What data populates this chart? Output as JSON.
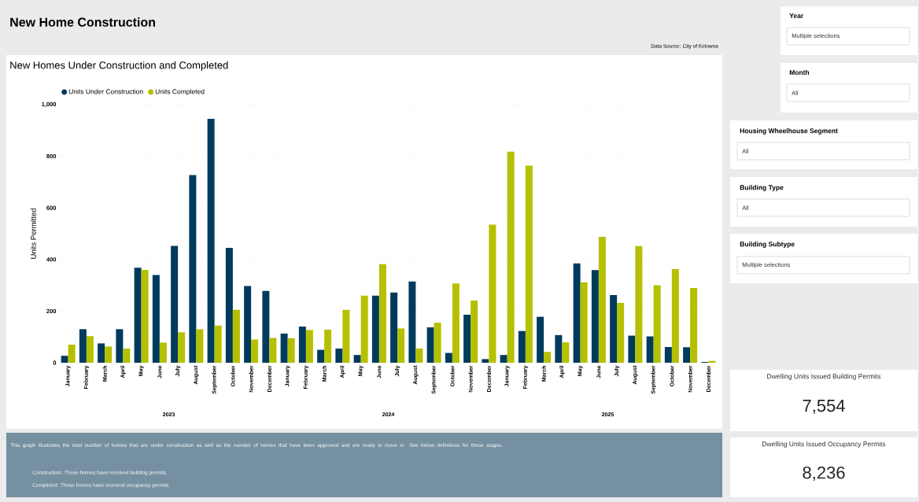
{
  "chart_data": [
    {
      "type": "other",
      "title": "New Home Construction",
      "annotations": [
        "Data Source: City of Kelowna"
      ]
    },
    {
      "type": "bar",
      "title": "New Homes Under Construction and Completed",
      "ylabel": "Units Permitted",
      "categories": [
        "January",
        "February",
        "March",
        "April",
        "May",
        "June",
        "July",
        "August",
        "September",
        "October",
        "November",
        "December",
        "January",
        "February",
        "March",
        "April",
        "May",
        "June",
        "July",
        "August",
        "September",
        "October",
        "November",
        "December",
        "January",
        "February",
        "March",
        "April",
        "May",
        "June",
        "July",
        "August",
        "September",
        "October",
        "November",
        "December"
      ],
      "series": [
        {
          "name": "Units Under Construction",
          "color": "#003a5c",
          "values": [
            27,
            130,
            75,
            130,
            368,
            340,
            453,
            727,
            945,
            445,
            297,
            278,
            113,
            140,
            50,
            55,
            30,
            260,
            272,
            315,
            137,
            38,
            186,
            14,
            30,
            123,
            178,
            107,
            385,
            359,
            262,
            105,
            102,
            61,
            60,
            3
          ]
        },
        {
          "name": "Units Completed",
          "color": "#b5c000",
          "values": [
            70,
            103,
            63,
            55,
            360,
            78,
            118,
            130,
            144,
            205,
            90,
            96,
            95,
            127,
            128,
            205,
            260,
            382,
            133,
            55,
            155,
            307,
            241,
            535,
            818,
            764,
            42,
            79,
            312,
            488,
            232,
            452,
            300,
            363,
            290,
            7
          ]
        }
      ],
      "ylim": [
        0,
        1000
      ],
      "yticks": [
        0,
        200,
        400,
        600,
        800,
        {
          "value": 1000,
          "label": "1,000"
        }
      ],
      "grid": "y",
      "legend": "top left",
      "annotations": [
        "2023",
        "2024",
        "2025"
      ]
    },
    {
      "type": "other",
      "annotations": [
        "Year",
        "Multiple selections",
        "Month",
        "All",
        "Housing Wheelhouse Segment",
        "All",
        "Building Type",
        "All",
        "Building Subtype",
        "Multiple selections",
        "Dwelling Units Issued Building Permits",
        "7,554",
        "Dwelling Units Issued Occupancy Permits",
        "8,236"
      ]
    },
    {
      "type": "other",
      "annotations": [
        "This graph illustrates the total number of homes that are under construction as well as the number of homes that have been approved and are ready to move in. See below definitions for these stages.",
        "Construction: These homes have received building permits.",
        "Completed: These homes have received occupancy permits."
      ]
    }
  ]
}
